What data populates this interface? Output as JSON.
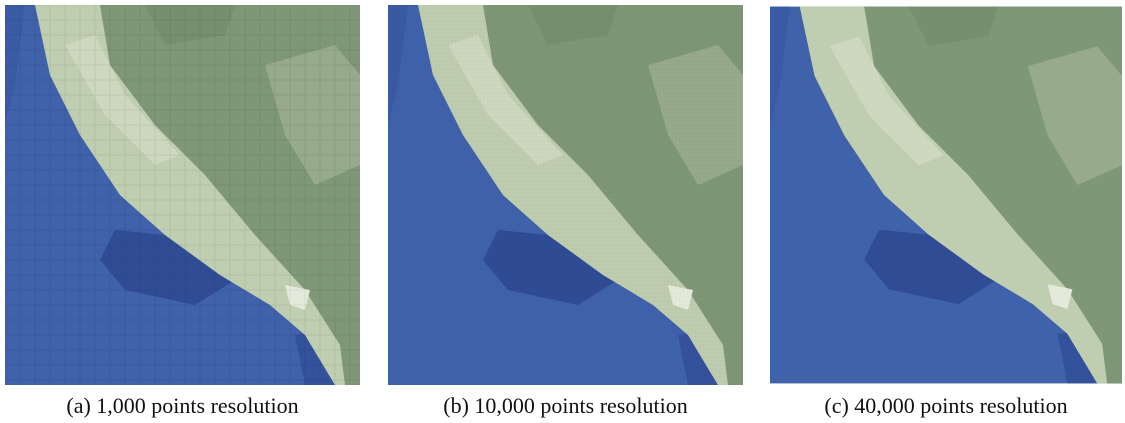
{
  "figure": {
    "panels": [
      {
        "caption": "(a) 1,000 points resolution"
      },
      {
        "caption": "(b) 10,000 points resolution"
      },
      {
        "caption": "(c) 40,000 points resolution"
      }
    ]
  }
}
